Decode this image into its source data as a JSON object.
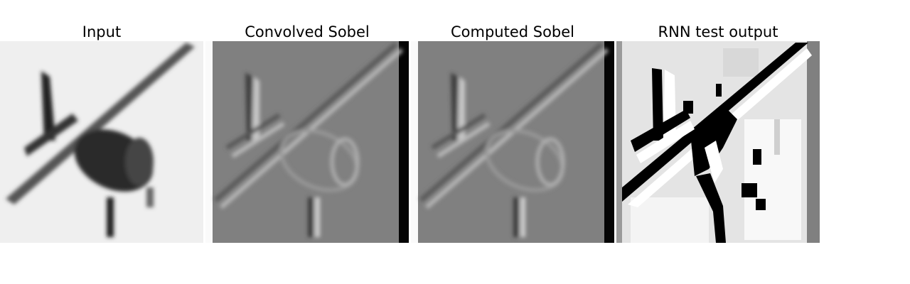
{
  "panels": [
    {
      "title": "Input",
      "image": "airplane grayscale input"
    },
    {
      "title": "Convolved Sobel",
      "image": "sobel edge map (convolution)"
    },
    {
      "title": "Computed Sobel",
      "image": "sobel edge map (computed)"
    },
    {
      "title": "RNN test output",
      "image": "binary edge output from RNN"
    }
  ]
}
